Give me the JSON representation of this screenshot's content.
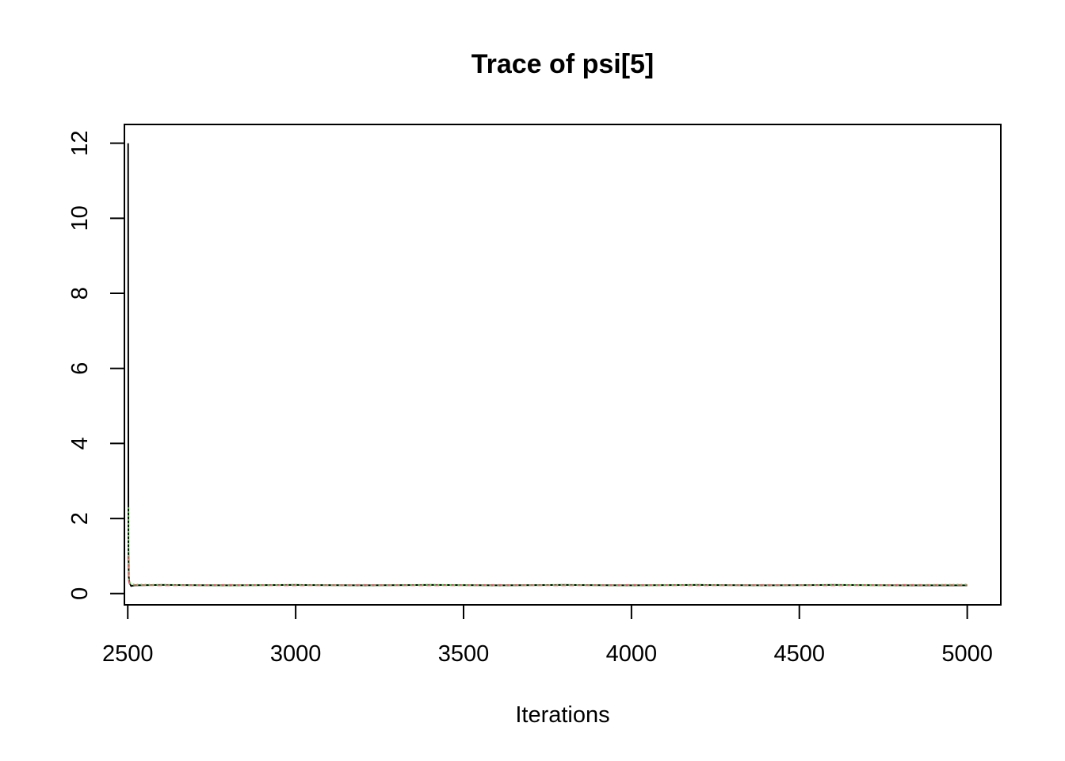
{
  "chart_data": {
    "type": "line",
    "title": "Trace of psi[5]",
    "xlabel": "Iterations",
    "ylabel": "",
    "xlim": [
      2490,
      5100
    ],
    "ylim": [
      -0.3,
      12.5
    ],
    "x_ticks": [
      2500,
      3000,
      3500,
      4000,
      4500,
      5000
    ],
    "y_ticks": [
      0,
      2,
      4,
      6,
      8,
      10,
      12
    ],
    "grid": false,
    "legend": "none",
    "series": [
      {
        "color": "#000000",
        "line_style": "solid",
        "x": [
          2501,
          2502,
          2503,
          2505,
          2510,
          2520,
          2600,
          2800,
          3000,
          3200,
          3400,
          3600,
          3800,
          4000,
          4200,
          4400,
          4600,
          4800,
          5000
        ],
        "values": [
          12.0,
          1.2,
          0.45,
          0.28,
          0.2,
          0.22,
          0.23,
          0.22,
          0.23,
          0.22,
          0.23,
          0.22,
          0.23,
          0.22,
          0.23,
          0.22,
          0.23,
          0.22,
          0.22
        ]
      },
      {
        "color": "#DF536B",
        "line_style": "dashed",
        "x": [
          2501,
          2502,
          2503,
          2505,
          2510,
          2520,
          2600,
          2800,
          3000,
          3200,
          3400,
          3600,
          3800,
          4000,
          4200,
          4400,
          4600,
          4800,
          5000
        ],
        "values": [
          1.0,
          0.6,
          0.35,
          0.27,
          0.24,
          0.23,
          0.22,
          0.23,
          0.22,
          0.23,
          0.22,
          0.23,
          0.22,
          0.23,
          0.22,
          0.23,
          0.22,
          0.23,
          0.23
        ]
      },
      {
        "color": "#61D04F",
        "line_style": "dotted",
        "x": [
          2501,
          2502,
          2503,
          2505,
          2510,
          2520,
          2600,
          2800,
          3000,
          3200,
          3400,
          3600,
          3800,
          4000,
          4200,
          4400,
          4600,
          4800,
          5000
        ],
        "values": [
          2.3,
          0.9,
          0.4,
          0.3,
          0.25,
          0.24,
          0.23,
          0.22,
          0.23,
          0.22,
          0.23,
          0.22,
          0.23,
          0.22,
          0.23,
          0.22,
          0.23,
          0.22,
          0.24
        ]
      }
    ]
  }
}
